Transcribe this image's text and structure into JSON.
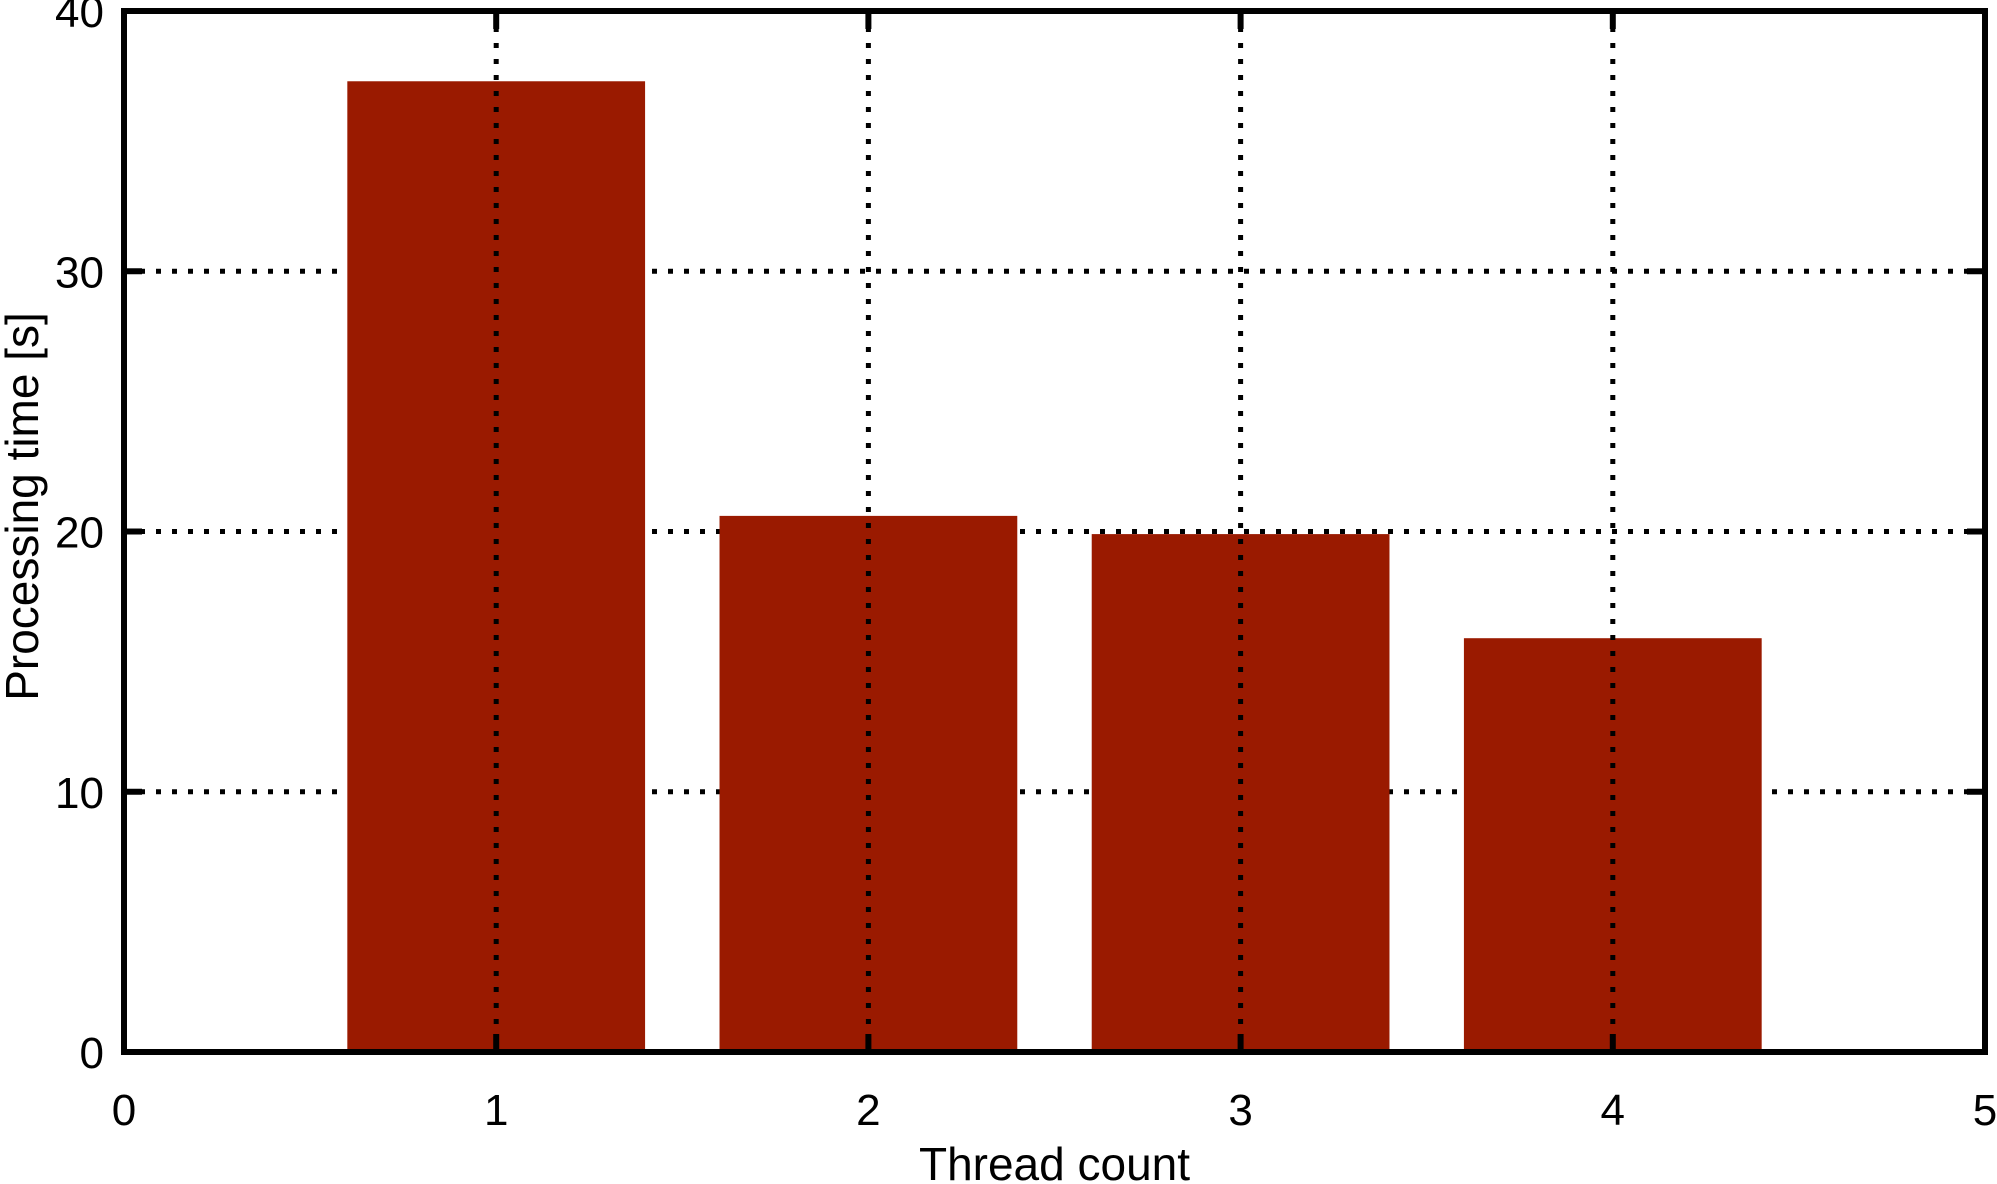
{
  "chart_data": {
    "type": "bar",
    "title": "",
    "xlabel": "Thread count",
    "ylabel": "Processing time [s]",
    "x": [
      1,
      2,
      3,
      4
    ],
    "values": [
      37.3,
      20.6,
      19.9,
      15.9
    ],
    "bar_width": 0.8,
    "xlim": [
      0,
      5
    ],
    "ylim": [
      0,
      40
    ],
    "x_ticks": [
      0,
      1,
      2,
      3,
      4,
      5
    ],
    "y_ticks": [
      0,
      10,
      20,
      30,
      40
    ],
    "x_tick_labels": [
      "0",
      "1",
      "2",
      "3",
      "4",
      "5"
    ],
    "y_tick_labels": [
      "0",
      "10",
      "20",
      "30",
      "40"
    ],
    "grid": true,
    "grid_style": "dotted",
    "bar_color": "#9a1a00",
    "legend": "none"
  }
}
